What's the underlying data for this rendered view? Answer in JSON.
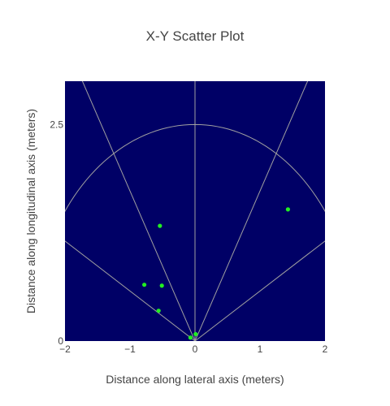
{
  "chart_data": {
    "type": "scatter",
    "title": "X-Y Scatter Plot",
    "xlabel": "Distance along lateral axis (meters)",
    "ylabel": "Distance along longitudinal axis (meters)",
    "xlim": [
      -2,
      2
    ],
    "ylim": [
      0,
      3
    ],
    "x_ticks": [
      -2,
      -1,
      0,
      1,
      2
    ],
    "x_tick_labels": [
      "−2",
      "−1",
      "0",
      "1",
      "2"
    ],
    "y_ticks": [
      0,
      2.5
    ],
    "y_tick_labels": [
      "0",
      "2.5"
    ],
    "grid": false,
    "background_color": "#000066",
    "guide_color": "#a0a0a0",
    "point_color": "#22ee22",
    "guides": {
      "arc_radius": 2.5,
      "ray_angles_deg_from_vertical": [
        -30,
        30,
        -60,
        60,
        0
      ]
    },
    "series": [
      {
        "x": [
          -0.54,
          1.43,
          -0.78,
          -0.51,
          -0.56,
          -0.07,
          0.01
        ],
        "y": [
          1.33,
          1.52,
          0.65,
          0.64,
          0.35,
          0.04,
          0.08
        ]
      }
    ]
  }
}
